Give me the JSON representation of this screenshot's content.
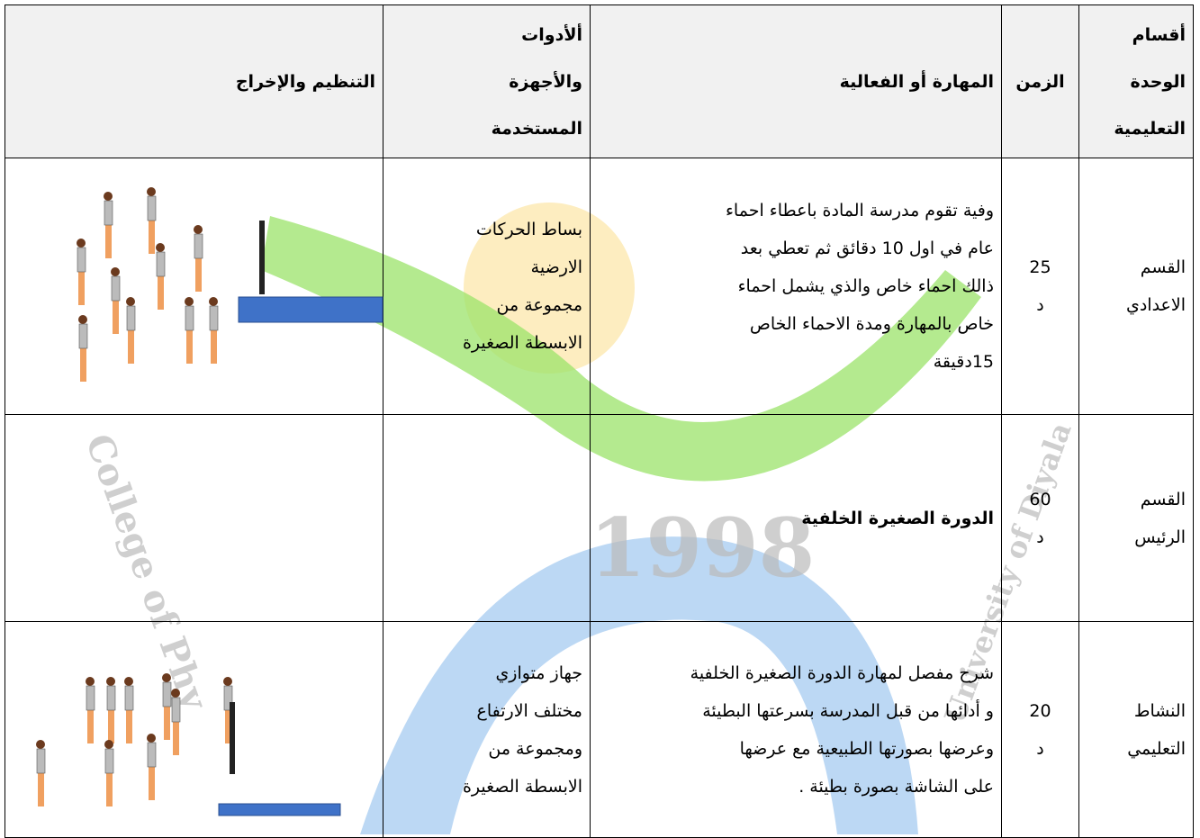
{
  "table": {
    "header": [
      [
        "أقسام",
        "الوحدة",
        "التعليمية"
      ],
      [
        "الزمن"
      ],
      [
        "المهارة أو الفعالية"
      ],
      [
        "ألأدوات",
        "والأجهزة",
        "المستخدمة"
      ],
      [
        "التنظيم والإخراج"
      ]
    ],
    "rows": [
      [
        [
          "القسم",
          "الاعدادي"
        ],
        [
          "25",
          "د"
        ],
        [
          "وفية تقوم مدرسة المادة باعطاء احماء",
          "عام في اول 10 دقائق ثم تعطي بعد",
          "ذالك احماء خاص والذي يشمل احماء",
          "خاص بالمهارة ومدة الاحماء الخاص",
          "15دقيقة"
        ],
        [
          "بساط الحركات",
          "الارضية",
          "مجموعة من",
          "الابسطة الصغيرة"
        ],
        []
      ],
      [
        [
          "القسم",
          "الرئيس"
        ],
        [
          "60",
          "د"
        ],
        [
          "الدورة الصغيرة الخلفية"
        ],
        [],
        []
      ],
      [
        [
          "النشاط",
          "التعليمي"
        ],
        [
          "20",
          "د"
        ],
        [
          "شرح مفصل لمهارة الدورة الصغيرة الخلفية",
          "و أدائها من قبل المدرسة بسرعتها البطيئة",
          "وعرضها بصورتها الطبيعية مع عرضها",
          "على الشاشة بصورة بطيئة ."
        ],
        [
          "جهاز متوازي",
          "مختلف الارتفاع",
          "ومجموعة من",
          "الابسطة الصغيرة"
        ],
        []
      ]
    ]
  },
  "watermark": [
    "1998",
    "College of Phy",
    "University of Diyala"
  ]
}
